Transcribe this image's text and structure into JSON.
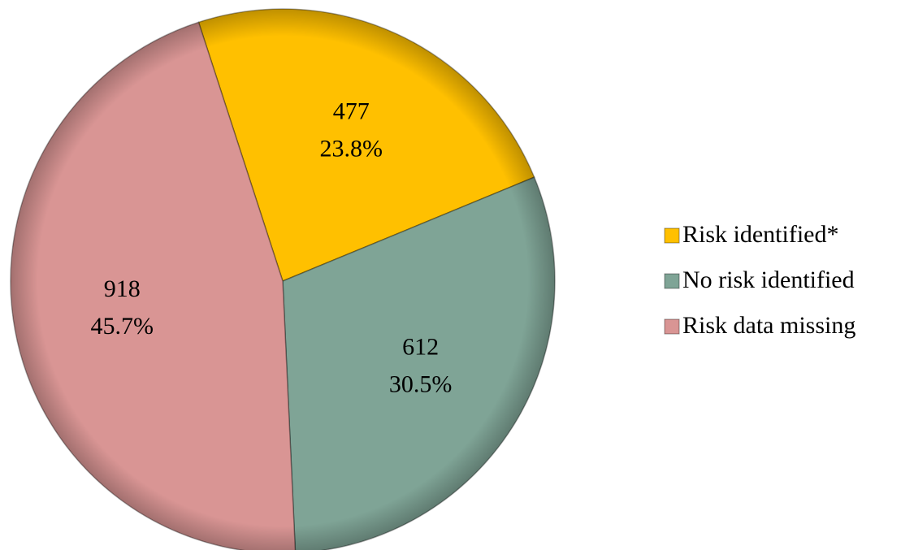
{
  "chart_data": {
    "type": "pie",
    "categories": [
      "Risk identified*",
      "No risk identified",
      "Risk data missing"
    ],
    "values": [
      477,
      612,
      918
    ],
    "percent_labels": [
      "23.8%",
      "30.5%",
      "45.7%"
    ],
    "colors": [
      "#FFC000",
      "#7FA496",
      "#D99594"
    ],
    "legend": "right"
  }
}
